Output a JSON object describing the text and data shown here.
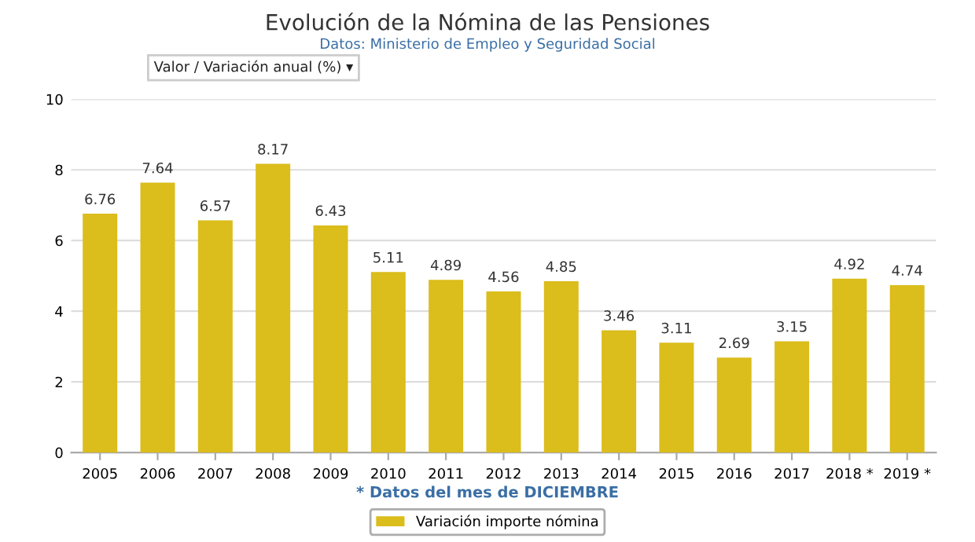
{
  "chart_data": {
    "type": "bar",
    "title": "Evolución de la Nómina de las Pensiones",
    "subtitle": "Datos: Ministerio de Empleo y Seguridad Social",
    "categories": [
      "2005",
      "2006",
      "2007",
      "2008",
      "2009",
      "2010",
      "2011",
      "2012",
      "2013",
      "2014",
      "2015",
      "2016",
      "2017",
      "2018 *",
      "2019 *"
    ],
    "series": [
      {
        "name": "Variación importe nómina",
        "color": "#dbbd1c",
        "values": [
          6.76,
          7.64,
          6.57,
          8.17,
          6.43,
          5.11,
          4.89,
          4.56,
          4.85,
          3.46,
          3.11,
          2.69,
          3.15,
          4.92,
          4.74
        ]
      }
    ],
    "ylim": [
      0,
      10
    ],
    "yticks": [
      0,
      2,
      4,
      6,
      8,
      10
    ],
    "grid": "y",
    "legend": "bottom",
    "data_labels": true,
    "annotations": [
      "Valor / Variación anual (%) ▾",
      "* Datos del mes de DICIEMBRE"
    ]
  }
}
